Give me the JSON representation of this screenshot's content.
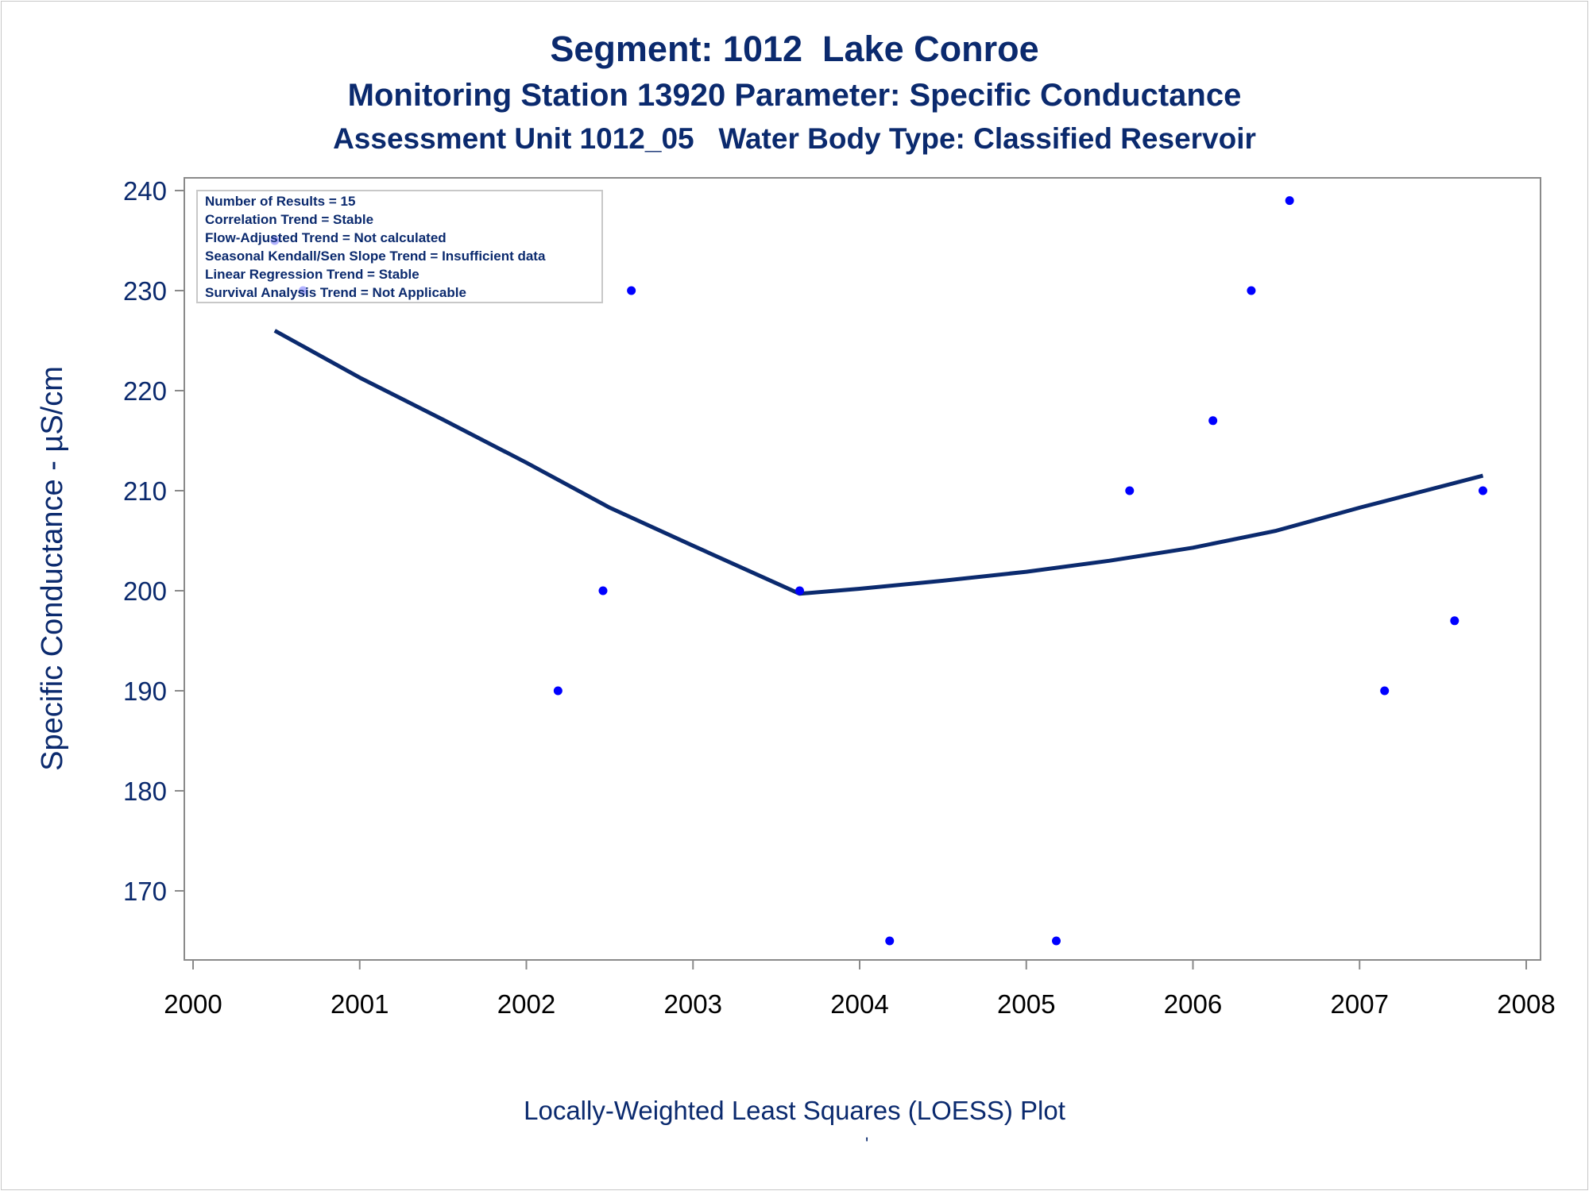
{
  "chart_data": {
    "type": "scatter",
    "title": "Segment: 1012  Lake Conroe",
    "subtitle_1": "Monitoring Station 13920 Parameter: Specific Conductance",
    "subtitle_2": "Assessment Unit 1012_05   Water Body Type: Classified Reservoir",
    "ylabel": "Specific Conductance -  µS/cm",
    "xlabel": "",
    "footnote": "Locally-Weighted Least Squares (LOESS) Plot",
    "footnote_mark": "'",
    "xlim": [
      2000,
      2008
    ],
    "ylim": [
      163,
      241.5
    ],
    "x_ticks": [
      "2000",
      "2001",
      "2002",
      "2003",
      "2004",
      "2005",
      "2006",
      "2007",
      "2008"
    ],
    "y_ticks": [
      "170",
      "180",
      "190",
      "200",
      "210",
      "220",
      "230",
      "240"
    ],
    "grid": false,
    "legend_placement": "top-left",
    "annotations": [
      "Number of Results = 15",
      "Correlation Trend = Stable",
      "Flow-Adjusted Trend = Not calculated",
      "Seasonal Kendall/Sen Slope Trend = Insufficient data",
      "Linear Regression Trend = Stable",
      "Survival Analysis Trend = Not Applicable"
    ],
    "series": [
      {
        "kind": "points",
        "color": "#0000ff",
        "points": [
          {
            "x": 2000.49,
            "y": 235
          },
          {
            "x": 2000.66,
            "y": 230
          },
          {
            "x": 2002.19,
            "y": 190
          },
          {
            "x": 2002.46,
            "y": 200
          },
          {
            "x": 2002.63,
            "y": 230
          },
          {
            "x": 2003.64,
            "y": 200
          },
          {
            "x": 2004.18,
            "y": 165
          },
          {
            "x": 2005.18,
            "y": 165
          },
          {
            "x": 2005.62,
            "y": 210
          },
          {
            "x": 2006.12,
            "y": 217
          },
          {
            "x": 2006.35,
            "y": 230
          },
          {
            "x": 2006.58,
            "y": 239
          },
          {
            "x": 2007.15,
            "y": 190
          },
          {
            "x": 2007.57,
            "y": 197
          },
          {
            "x": 2007.74,
            "y": 210
          }
        ]
      },
      {
        "kind": "loess-line",
        "color": "#0b2a6e",
        "points": [
          {
            "x": 2000.49,
            "y": 226
          },
          {
            "x": 2001.0,
            "y": 221.3
          },
          {
            "x": 2001.5,
            "y": 217.1
          },
          {
            "x": 2002.0,
            "y": 212.8
          },
          {
            "x": 2002.5,
            "y": 208.3
          },
          {
            "x": 2003.0,
            "y": 204.5
          },
          {
            "x": 2003.64,
            "y": 199.7
          },
          {
            "x": 2004.0,
            "y": 200.2
          },
          {
            "x": 2004.5,
            "y": 201
          },
          {
            "x": 2005.0,
            "y": 201.9
          },
          {
            "x": 2005.5,
            "y": 203
          },
          {
            "x": 2006.0,
            "y": 204.3
          },
          {
            "x": 2006.5,
            "y": 206
          },
          {
            "x": 2007.0,
            "y": 208.3
          },
          {
            "x": 2007.74,
            "y": 211.5
          }
        ]
      }
    ]
  }
}
